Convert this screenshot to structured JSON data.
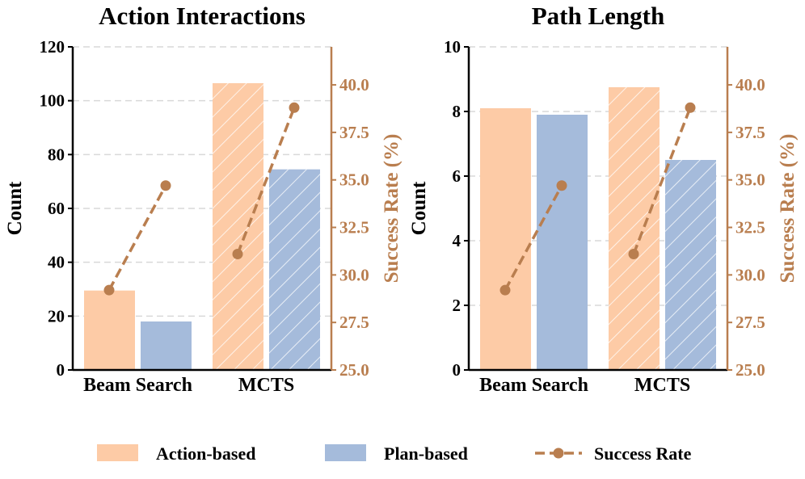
{
  "chart_data": [
    {
      "type": "bar",
      "title": "Action Interactions",
      "categories": [
        "Beam Search",
        "MCTS"
      ],
      "series": [
        {
          "name": "Action-based",
          "values": [
            29.5,
            106.5
          ]
        },
        {
          "name": "Plan-based",
          "values": [
            18,
            74.5
          ]
        }
      ],
      "ylabel": "Count",
      "ylim": [
        0,
        120
      ],
      "yticks": [
        "0",
        "20",
        "40",
        "60",
        "80",
        "100",
        "120"
      ],
      "grid": true,
      "secondary": {
        "name": "Success Rate",
        "ylabel": "Success Rate (%)",
        "ylim": [
          25,
          42
        ],
        "yticks": [
          "25.0",
          "27.5",
          "30.0",
          "32.5",
          "35.0",
          "37.5",
          "40.0"
        ],
        "segments": [
          [
            29.2,
            34.7
          ],
          [
            31.1,
            38.8
          ]
        ]
      }
    },
    {
      "type": "bar",
      "title": "Path Length",
      "categories": [
        "Beam Search",
        "MCTS"
      ],
      "series": [
        {
          "name": "Action-based",
          "values": [
            8.1,
            8.75
          ]
        },
        {
          "name": "Plan-based",
          "values": [
            7.9,
            6.5
          ]
        }
      ],
      "ylabel": "Count",
      "ylim": [
        0,
        10
      ],
      "yticks": [
        "0",
        "2",
        "4",
        "6",
        "8",
        "10"
      ],
      "grid": true,
      "secondary": {
        "name": "Success Rate",
        "ylabel": "Success Rate (%)",
        "ylim": [
          25,
          42
        ],
        "yticks": [
          "25.0",
          "27.5",
          "30.0",
          "32.5",
          "35.0",
          "37.5",
          "40.0"
        ],
        "segments": [
          [
            29.2,
            34.7
          ],
          [
            31.1,
            38.8
          ]
        ]
      }
    }
  ],
  "legend": {
    "position": "bottom",
    "items": [
      {
        "label": "Action-based",
        "kind": "bar"
      },
      {
        "label": "Plan-based",
        "kind": "bar"
      },
      {
        "label": "Success Rate",
        "kind": "line"
      }
    ]
  },
  "colors": {
    "action": "#fdcba6",
    "plan": "#a5bbdb",
    "line": "#b97e4f",
    "grid": "#d9d9d9",
    "axis": "#000000"
  }
}
